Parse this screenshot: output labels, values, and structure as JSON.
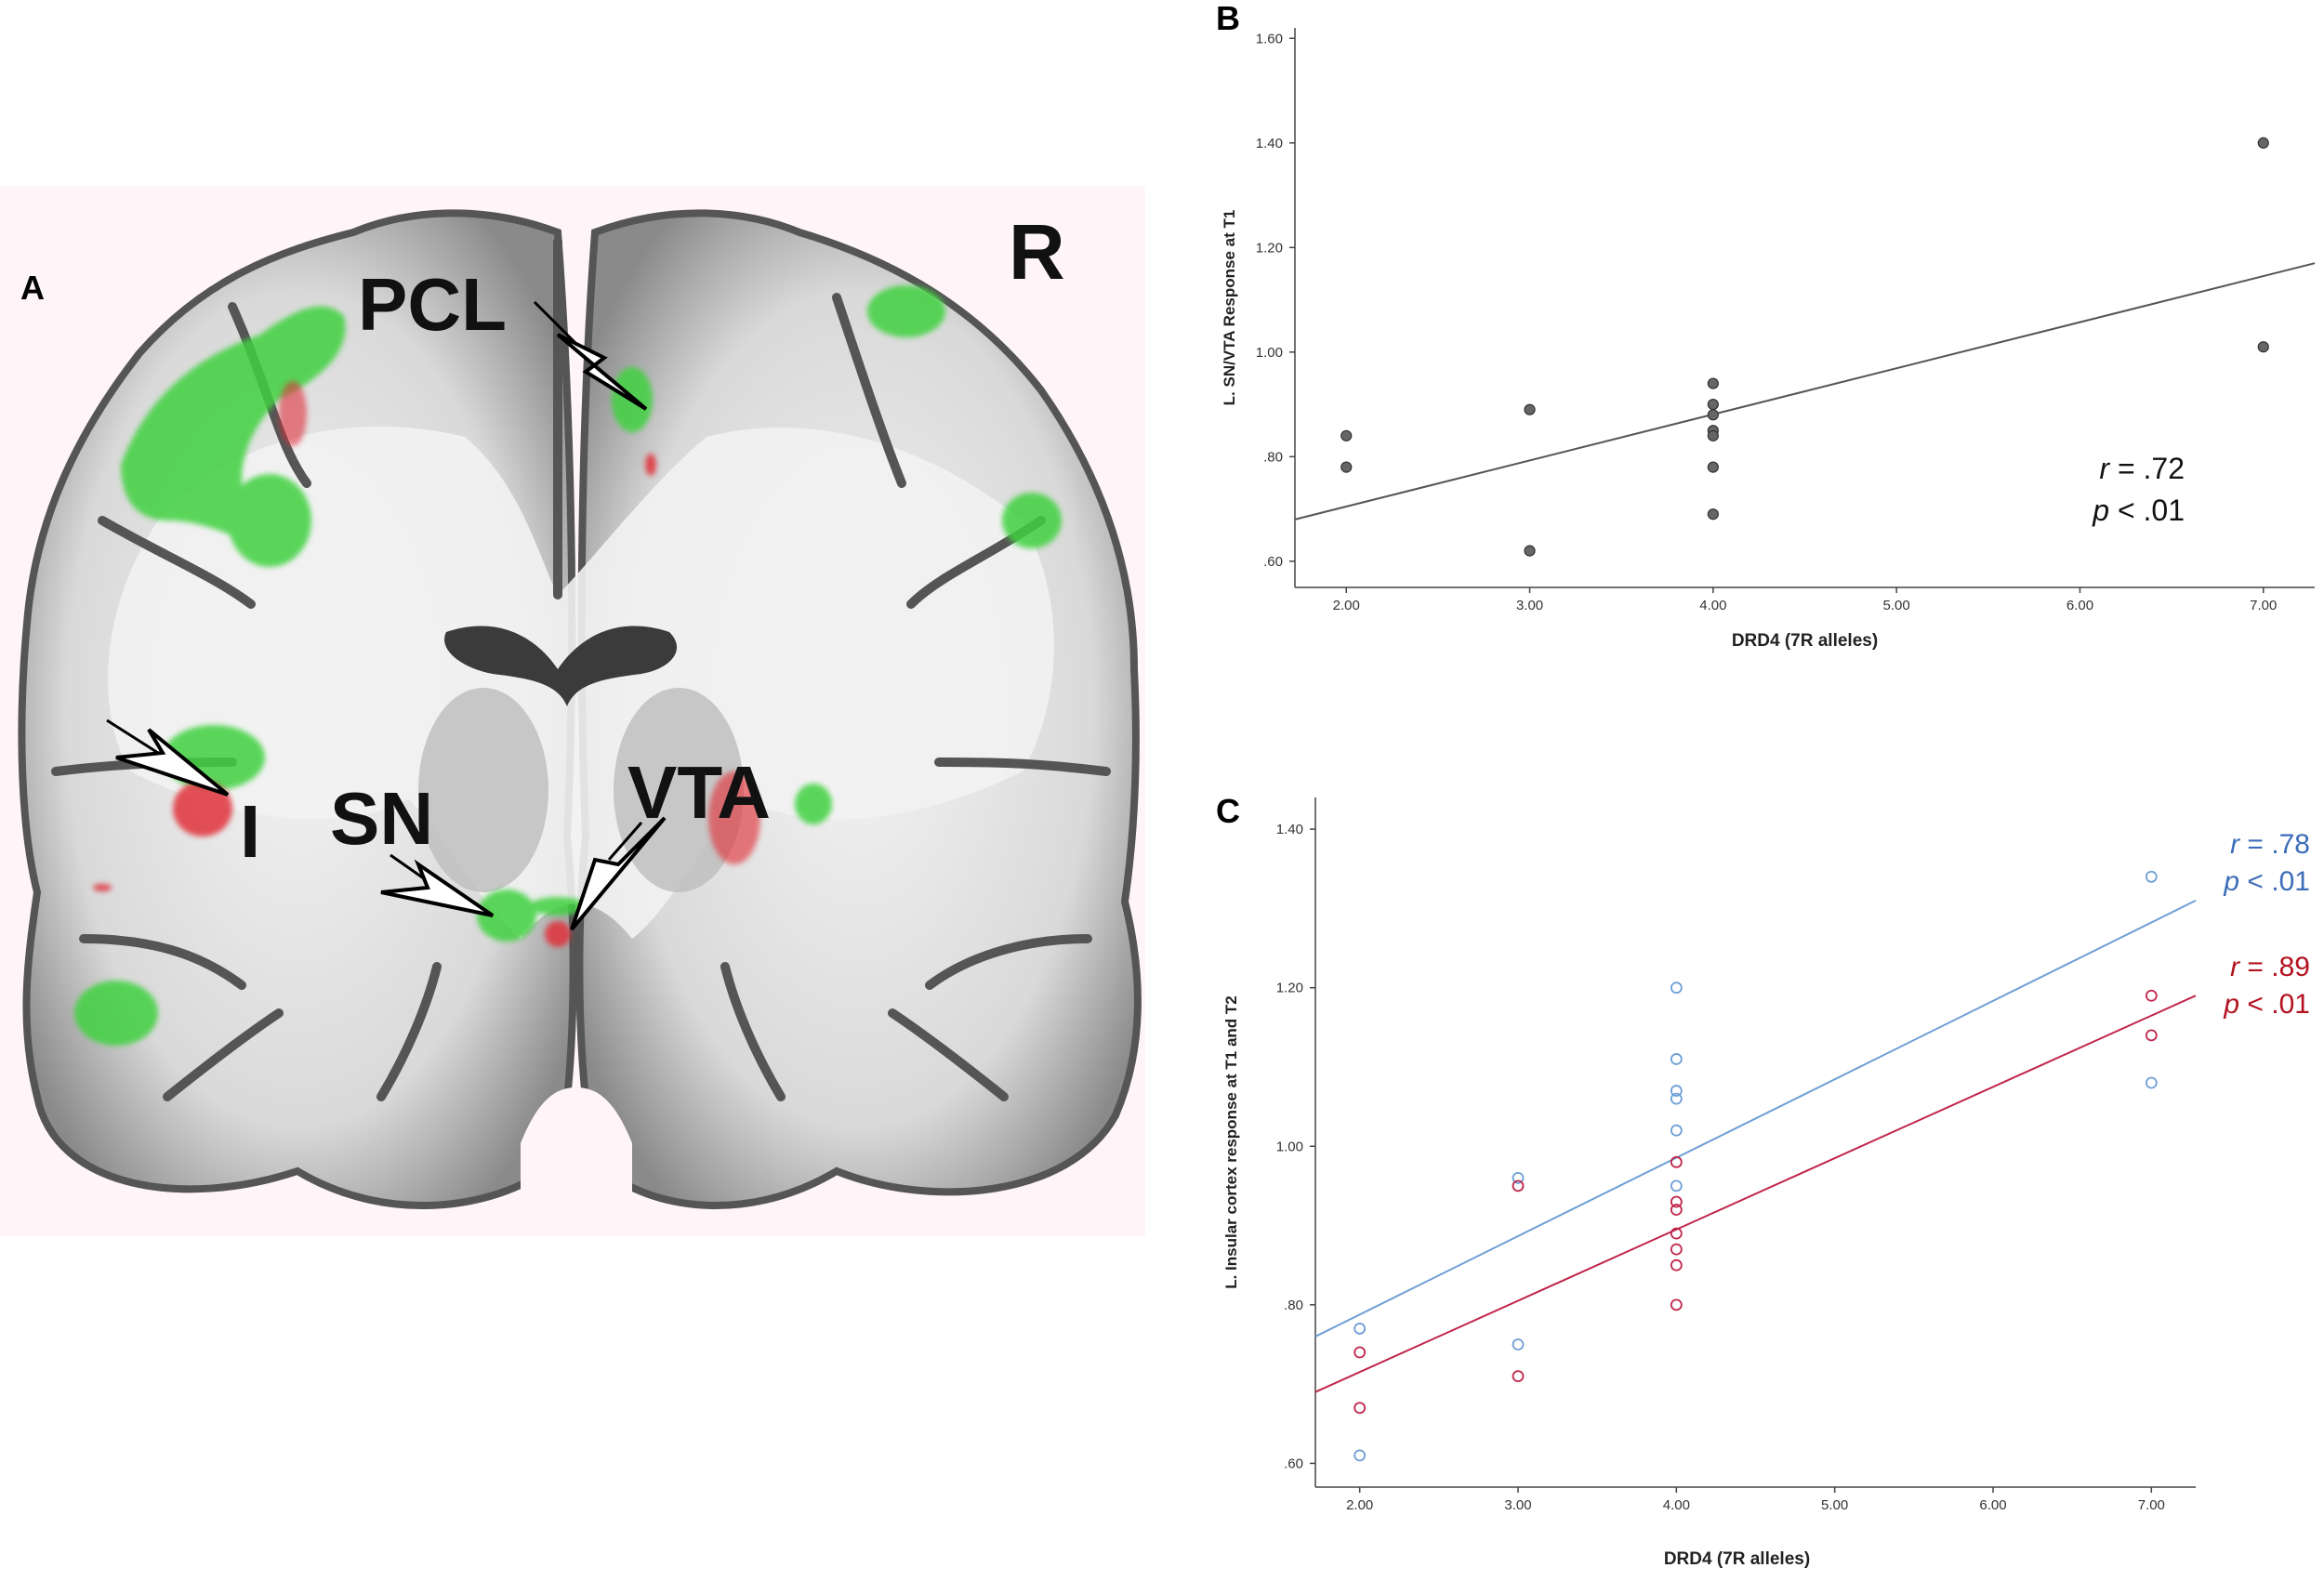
{
  "panel_a": {
    "letter": "A",
    "labels": {
      "R": "R",
      "PCL": "PCL",
      "I": "I",
      "SN": "SN",
      "VTA": "VTA"
    },
    "colors": {
      "background": "#fff4f7",
      "activation_green": "#3fd13f",
      "activation_red": "#e0303a"
    }
  },
  "chart_data": [
    {
      "panel": "B",
      "type": "scatter",
      "xlabel": "DRD4 (7R alleles)",
      "ylabel": "L. SN/VTA Response at T1",
      "xlim": [
        1.72,
        7.28
      ],
      "ylim": [
        0.55,
        1.62
      ],
      "xticks": [
        "2.00",
        "3.00",
        "4.00",
        "5.00",
        "6.00",
        "7.00"
      ],
      "yticks": [
        ".60",
        ".80",
        "1.00",
        "1.20",
        "1.40",
        "1.60"
      ],
      "series": [
        {
          "color": "#555555",
          "marker": "filled-circle",
          "points": [
            [
              2.0,
              0.84
            ],
            [
              2.0,
              0.78
            ],
            [
              3.0,
              0.89
            ],
            [
              3.0,
              0.62
            ],
            [
              4.0,
              0.94
            ],
            [
              4.0,
              0.9
            ],
            [
              4.0,
              0.88
            ],
            [
              4.0,
              0.85
            ],
            [
              4.0,
              0.84
            ],
            [
              4.0,
              0.78
            ],
            [
              4.0,
              0.69
            ],
            [
              7.0,
              1.4
            ],
            [
              7.0,
              1.01
            ]
          ],
          "fit": [
            [
              1.72,
              0.68
            ],
            [
              7.28,
              1.17
            ]
          ]
        }
      ],
      "annotations": [
        {
          "text_r": "r",
          "text_r_value": " = .72",
          "text_p": "p",
          "text_p_value": " < .01",
          "color": "#111111"
        }
      ],
      "grid": false
    },
    {
      "panel": "C",
      "type": "scatter",
      "xlabel": "DRD4 (7R alleles)",
      "ylabel": "L. Insular cortex response at T1 and T2",
      "xlim": [
        1.72,
        7.28
      ],
      "ylim": [
        0.57,
        1.44
      ],
      "xticks": [
        "2.00",
        "3.00",
        "4.00",
        "5.00",
        "6.00",
        "7.00"
      ],
      "yticks": [
        ".60",
        ".80",
        "1.00",
        "1.20",
        "1.40"
      ],
      "series": [
        {
          "color": "#6e9fd6",
          "marker": "open-circle",
          "points": [
            [
              2.0,
              0.77
            ],
            [
              2.0,
              0.61
            ],
            [
              3.0,
              0.96
            ],
            [
              3.0,
              0.75
            ],
            [
              4.0,
              1.2
            ],
            [
              4.0,
              1.11
            ],
            [
              4.0,
              1.07
            ],
            [
              4.0,
              1.06
            ],
            [
              4.0,
              1.02
            ],
            [
              4.0,
              0.95
            ],
            [
              7.0,
              1.34
            ],
            [
              7.0,
              1.08
            ]
          ],
          "fit": [
            [
              1.72,
              0.76
            ],
            [
              7.28,
              1.31
            ]
          ]
        },
        {
          "color": "#c0264a",
          "marker": "open-circle",
          "points": [
            [
              2.0,
              0.74
            ],
            [
              2.0,
              0.67
            ],
            [
              3.0,
              0.95
            ],
            [
              3.0,
              0.71
            ],
            [
              4.0,
              0.98
            ],
            [
              4.0,
              0.93
            ],
            [
              4.0,
              0.92
            ],
            [
              4.0,
              0.89
            ],
            [
              4.0,
              0.87
            ],
            [
              4.0,
              0.85
            ],
            [
              4.0,
              0.8
            ],
            [
              7.0,
              1.19
            ],
            [
              7.0,
              1.14
            ]
          ],
          "fit": [
            [
              1.72,
              0.69
            ],
            [
              7.28,
              1.19
            ]
          ]
        }
      ],
      "annotations": [
        {
          "text_r": "r",
          "text_r_value": " = .78",
          "text_p": "p",
          "text_p_value": " < .01",
          "color": "#3d6db8"
        },
        {
          "text_r": "r",
          "text_r_value": " = .89",
          "text_p": "p",
          "text_p_value": " < .01",
          "color": "#b3121f"
        }
      ],
      "grid": false
    }
  ]
}
